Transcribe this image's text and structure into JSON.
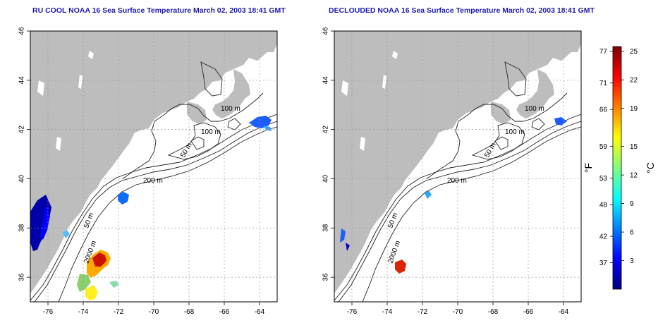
{
  "maps": [
    {
      "id": "left",
      "title": "RU COOL NOAA 16 Sea Surface Temperature March 02, 2003 18:41 GMT"
    },
    {
      "id": "right",
      "title": "DECLOUDED NOAA 16 Sea Surface Temperature March 02, 2003 18:41 GMT"
    }
  ],
  "axes": {
    "x_ticks": [
      "-76",
      "-74",
      "-72",
      "-70",
      "-68",
      "-66",
      "-64"
    ],
    "y_ticks": [
      "36",
      "38",
      "40",
      "42",
      "44",
      "46"
    ],
    "lon_range": [
      -77,
      -63
    ],
    "lat_range": [
      35,
      46
    ]
  },
  "contour_labels": [
    "100 m",
    "100 m",
    "50 m",
    "200 m",
    "50 m",
    "2000 m"
  ],
  "colorbar": {
    "fahrenheit_label": "°F",
    "celsius_label": "°C",
    "fahrenheit_ticks": [
      "77",
      "71",
      "66",
      "59",
      "53",
      "48",
      "42",
      "37"
    ],
    "celsius_ticks": [
      "25",
      "22",
      "19",
      "15",
      "12",
      "9",
      "6",
      "3"
    ],
    "celsius_range": [
      0,
      25.5
    ],
    "colors": [
      "#00007f",
      "#0000ff",
      "#007fff",
      "#00ffff",
      "#7fff7f",
      "#ffff00",
      "#ff7f00",
      "#ff0000",
      "#7f0000"
    ]
  },
  "colors": {
    "land": "#bdbdbd",
    "title": "#1b1bb0",
    "grid": "#9a9a9a"
  }
}
